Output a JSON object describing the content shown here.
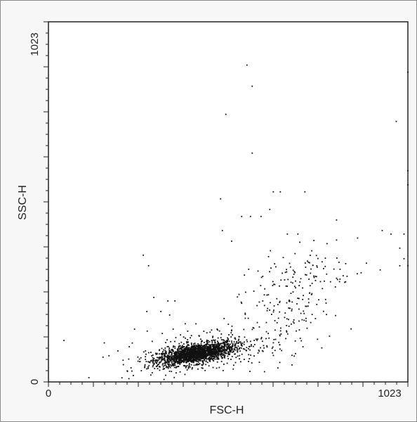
{
  "chart_data": {
    "type": "scatter",
    "title": "",
    "xlabel": "FSC-H",
    "ylabel": "SSC-H",
    "xlim": [
      0,
      1023
    ],
    "ylim": [
      0,
      1023
    ],
    "x_tick_labels": [
      "0",
      "1023"
    ],
    "y_tick_labels": [
      "0",
      "1023"
    ],
    "grid": false,
    "legend": "none",
    "point_color": "#111111",
    "populations": [
      {
        "center": [
          420,
          80
        ],
        "spread": [
          55,
          16
        ],
        "count": 1800,
        "correlation": 0.55
      },
      {
        "center": [
          450,
          90
        ],
        "spread": [
          120,
          35
        ],
        "count": 260,
        "correlation": 0.35
      },
      {
        "center": [
          680,
          230
        ],
        "spread": [
          80,
          90
        ],
        "count": 220,
        "correlation": 0.55
      }
    ],
    "outliers": [
      [
        565,
        900
      ],
      [
        580,
        840
      ],
      [
        505,
        760
      ],
      [
        580,
        650
      ],
      [
        640,
        540
      ],
      [
        660,
        540
      ],
      [
        730,
        540
      ],
      [
        490,
        520
      ],
      [
        550,
        470
      ],
      [
        575,
        470
      ],
      [
        605,
        470
      ],
      [
        630,
        490
      ],
      [
        495,
        430
      ],
      [
        680,
        420
      ],
      [
        710,
        420
      ],
      [
        820,
        460
      ],
      [
        950,
        430
      ],
      [
        975,
        420
      ],
      [
        1012,
        420
      ],
      [
        1012,
        350
      ],
      [
        1000,
        380
      ],
      [
        1023,
        600
      ],
      [
        1023,
        560
      ],
      [
        990,
        740
      ],
      [
        1023,
        880
      ],
      [
        570,
        320
      ],
      [
        610,
        300
      ],
      [
        740,
        340
      ],
      [
        760,
        300
      ],
      [
        830,
        320
      ],
      [
        850,
        300
      ],
      [
        890,
        310
      ],
      [
        270,
        360
      ],
      [
        285,
        330
      ],
      [
        340,
        230
      ],
      [
        360,
        230
      ],
      [
        300,
        240
      ],
      [
        320,
        200
      ],
      [
        280,
        200
      ],
      [
        245,
        150
      ],
      [
        345,
        190
      ],
      [
        355,
        150
      ],
      [
        500,
        180
      ],
      [
        480,
        150
      ],
      [
        420,
        165
      ],
      [
        230,
        100
      ],
      [
        235,
        40
      ],
      [
        225,
        30
      ],
      [
        300,
        60
      ],
      [
        470,
        60
      ],
      [
        560,
        195
      ],
      [
        610,
        230
      ],
      [
        760,
        180
      ],
      [
        800,
        130
      ],
      [
        1023,
        330
      ],
      [
        1000,
        330
      ]
    ]
  }
}
